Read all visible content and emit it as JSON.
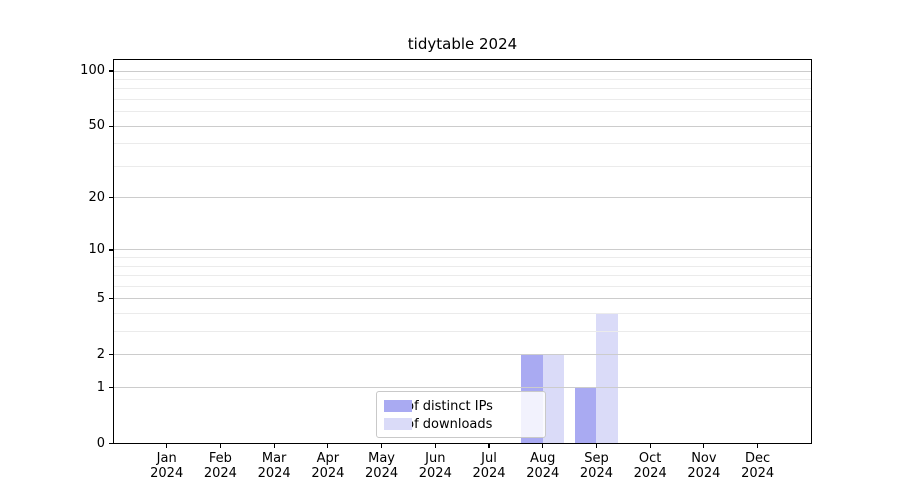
{
  "title": "tidytable 2024",
  "chart_data": {
    "type": "bar",
    "title": "tidytable 2024",
    "categories": [
      "Jan 2024",
      "Feb 2024",
      "Mar 2024",
      "Apr 2024",
      "May 2024",
      "Jun 2024",
      "Jul 2024",
      "Aug 2024",
      "Sep 2024",
      "Oct 2024",
      "Nov 2024",
      "Dec 2024"
    ],
    "x_months": [
      "Jan",
      "Feb",
      "Mar",
      "Apr",
      "May",
      "Jun",
      "Jul",
      "Aug",
      "Sep",
      "Oct",
      "Nov",
      "Dec"
    ],
    "x_year": "2024",
    "series": [
      {
        "name": "Nb of distinct IPs",
        "color": "#a9aaf2",
        "values": [
          0,
          0,
          0,
          0,
          0,
          0,
          0,
          2,
          1,
          0,
          0,
          0
        ]
      },
      {
        "name": "Nb of downloads",
        "color": "#dadbf8",
        "values": [
          0,
          0,
          0,
          0,
          0,
          0,
          0,
          2,
          4,
          0,
          0,
          0
        ]
      }
    ],
    "xlabel": "",
    "ylabel": "",
    "yscale": "log1p",
    "ylim": [
      0,
      117
    ],
    "y_axis": {
      "major_ticks": [
        0,
        1,
        2,
        5,
        10,
        20,
        50,
        100
      ],
      "minor_ticks": [
        3,
        4,
        6,
        7,
        8,
        9,
        30,
        40,
        60,
        70,
        80,
        90
      ]
    },
    "grid": {
      "enabled": true,
      "major_color": "#cccccc",
      "minor_color": "#ebebeb"
    },
    "legend": {
      "position": "inside lower center",
      "entries": [
        "Nb of distinct IPs",
        "Nb of downloads"
      ]
    }
  },
  "colors": {
    "background": "#ffffff",
    "axis": "#000000",
    "bar_distinct_ips": "#a9aaf2",
    "bar_downloads": "#dadbf8",
    "legend_border": "#c9c9c9"
  }
}
